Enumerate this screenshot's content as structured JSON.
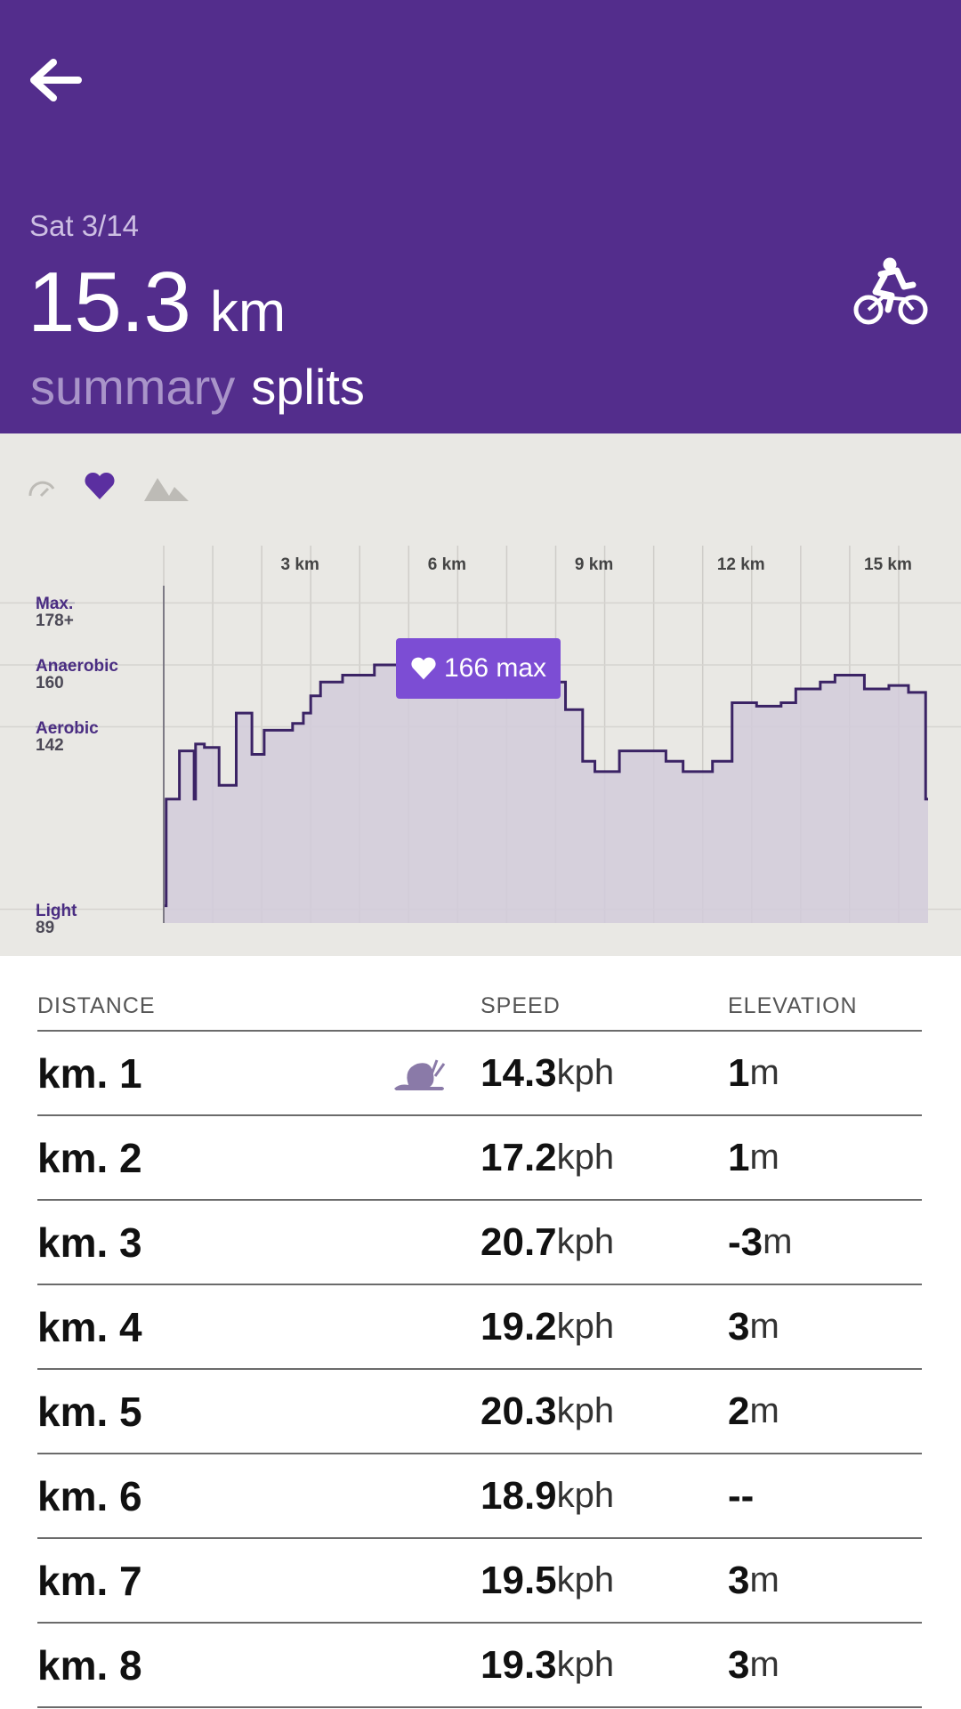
{
  "header": {
    "date": "Sat 3/14",
    "distance_value": "15.3",
    "distance_unit": "km",
    "activity_icon": "bike-icon",
    "back_icon": "back-arrow-icon",
    "tabs": [
      {
        "label": "summary",
        "selected": false
      },
      {
        "label": "splits",
        "selected": true
      }
    ]
  },
  "metrics": {
    "icons": [
      "speed-icon",
      "heart-icon",
      "elevation-icon"
    ],
    "selected": "heart-icon"
  },
  "chart_data": {
    "type": "line",
    "x": [
      0.0,
      0.05,
      0.06,
      0.3,
      0.32,
      0.48,
      0.62,
      0.65,
      0.83,
      1.0,
      1.09,
      1.13,
      1.38,
      1.48,
      1.52,
      1.8,
      2.01,
      2.05,
      2.3,
      2.58,
      2.63,
      2.85,
      3.0,
      3.2,
      3.3,
      3.48,
      3.65,
      3.85,
      3.95,
      4.15,
      4.3,
      4.5,
      4.9,
      5.1,
      5.5,
      5.9,
      6.3,
      6.5,
      6.8,
      7.1,
      7.3,
      7.7,
      8.2,
      8.55,
      8.8,
      9.1,
      9.3,
      9.5,
      9.7,
      10.05,
      10.25,
      10.6,
      10.9,
      11.2,
      11.4,
      11.6,
      12.1,
      12.3,
      12.6,
      12.9,
      13.2,
      13.4,
      13.7,
      14.0,
      14.3,
      14.5,
      14.8,
      15.2,
      15.45,
      15.55
    ],
    "y": [
      90,
      121,
      121,
      121,
      135,
      135,
      121,
      137,
      136,
      136,
      136,
      125,
      125,
      146,
      146,
      134,
      134,
      141,
      141,
      141,
      143,
      146,
      151,
      155,
      155,
      155,
      157,
      157,
      157,
      157,
      160,
      160,
      165,
      166,
      164,
      165,
      165,
      162,
      162,
      162,
      159,
      155,
      147,
      132,
      129,
      129,
      135,
      135,
      135,
      135,
      132,
      129,
      129,
      132,
      132,
      149,
      148,
      148,
      149,
      153,
      153,
      155,
      157,
      157,
      153,
      153,
      154,
      152,
      152,
      121
    ],
    "ylim": [
      85,
      183
    ],
    "xlim": [
      0,
      15.6
    ],
    "x_ticks": [
      "3 km",
      "6 km",
      "9 km",
      "12 km",
      "15 km"
    ],
    "zones": [
      {
        "name": "Max.",
        "value": "178+",
        "bpm": 178
      },
      {
        "name": "Anaerobic",
        "value": "160",
        "bpm": 160
      },
      {
        "name": "Aerobic",
        "value": "142",
        "bpm": 142
      },
      {
        "name": "Light",
        "value": "89",
        "bpm": 89
      }
    ],
    "max_label": "166 max",
    "colors": {
      "line": "#3b2365",
      "fill": "#d2cbdb",
      "badge": "#7c4dd4"
    }
  },
  "table": {
    "headers": {
      "distance": "DISTANCE",
      "speed": "SPEED",
      "elevation": "ELEVATION"
    },
    "rows": [
      {
        "km": "km. 1",
        "speed": "14.3",
        "speed_unit": "kph",
        "elev": "1",
        "elev_unit": "m",
        "icon": "snail-icon"
      },
      {
        "km": "km. 2",
        "speed": "17.2",
        "speed_unit": "kph",
        "elev": "1",
        "elev_unit": "m"
      },
      {
        "km": "km. 3",
        "speed": "20.7",
        "speed_unit": "kph",
        "elev": "-3",
        "elev_unit": "m"
      },
      {
        "km": "km. 4",
        "speed": "19.2",
        "speed_unit": "kph",
        "elev": "3",
        "elev_unit": "m"
      },
      {
        "km": "km. 5",
        "speed": "20.3",
        "speed_unit": "kph",
        "elev": "2",
        "elev_unit": "m"
      },
      {
        "km": "km. 6",
        "speed": "18.9",
        "speed_unit": "kph",
        "elev": "--",
        "elev_unit": ""
      },
      {
        "km": "km. 7",
        "speed": "19.5",
        "speed_unit": "kph",
        "elev": "3",
        "elev_unit": "m"
      },
      {
        "km": "km. 8",
        "speed": "19.3",
        "speed_unit": "kph",
        "elev": "3",
        "elev_unit": "m"
      }
    ]
  },
  "colors": {
    "header_bg": "#532d8c",
    "chart_bg": "#e9e8e4",
    "accent": "#7c4dd4"
  }
}
